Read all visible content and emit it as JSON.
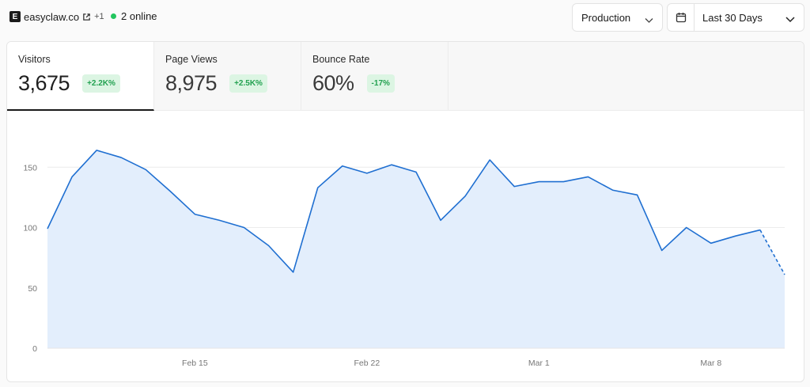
{
  "header": {
    "site_logo_letter": "E",
    "site_name": "easyclaw.co",
    "site_extra": "+1",
    "online_text": "2 online"
  },
  "controls": {
    "environment": "Production",
    "date_range": "Last 30 Days"
  },
  "metrics": [
    {
      "label": "Visitors",
      "value": "3,675",
      "delta": "+2.2K%"
    },
    {
      "label": "Page Views",
      "value": "8,975",
      "delta": "+2.5K%"
    },
    {
      "label": "Bounce Rate",
      "value": "60%",
      "delta": "-17%"
    }
  ],
  "colors": {
    "line": "#1f6fd1",
    "area": "#e3eefc",
    "delta_bg": "#dcf5e3",
    "delta_text": "#22a150",
    "online": "#22c55e"
  },
  "chart_data": {
    "type": "area",
    "x_tick_labels": [
      "Feb 15",
      "Feb 22",
      "Mar 1",
      "Mar 8"
    ],
    "x_tick_index": [
      6,
      13,
      20,
      27
    ],
    "y_ticks": [
      0,
      50,
      100,
      150
    ],
    "ylim": [
      0,
      175
    ],
    "grid": true,
    "series": [
      {
        "values": [
          99,
          142,
          164,
          158,
          148,
          130,
          111,
          106,
          100,
          85,
          63,
          133,
          151,
          145,
          152,
          146,
          106,
          126,
          156,
          134,
          138,
          138,
          142,
          131,
          127,
          81,
          100,
          87,
          93,
          98,
          61
        ],
        "dashed_from_index": 29
      }
    ]
  }
}
